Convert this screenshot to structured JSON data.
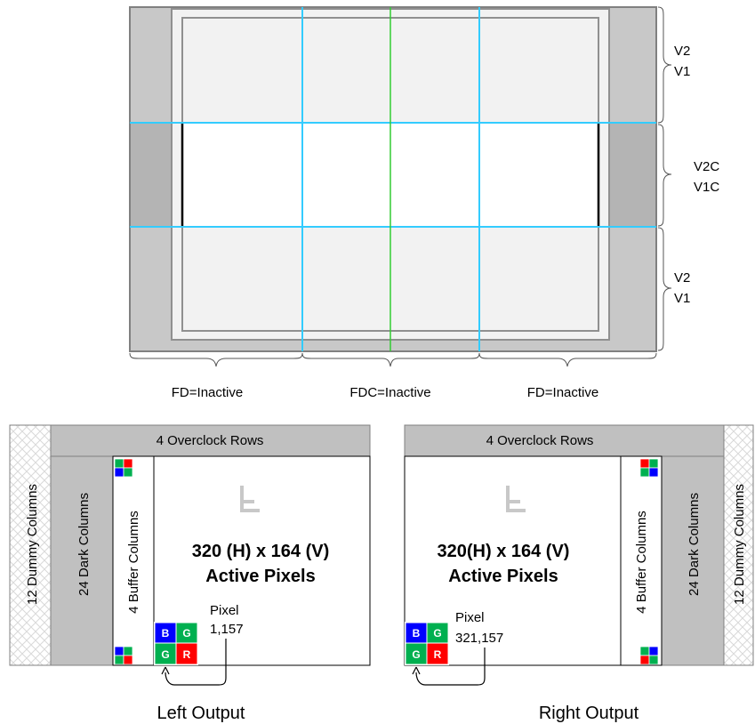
{
  "top_diagram": {
    "right_labels": [
      {
        "line1": "V2",
        "line2": "V1"
      },
      {
        "line1": "V2C",
        "line2": "V1C"
      },
      {
        "line1": "V2",
        "line2": "V1"
      }
    ],
    "bottom_labels": [
      "FD=Inactive",
      "FDC=Inactive",
      "FD=Inactive"
    ]
  },
  "left_panel": {
    "dummy_label": "12 Dummy Columns",
    "dark_label": "24 Dark Columns",
    "overclock_label": "4 Overclock Rows",
    "buffer_label": "4 Buffer Columns",
    "active_line1": "320 (H) x 164 (V)",
    "active_line2": "Active Pixels",
    "pixel_label": "Pixel",
    "pixel_coord": "1,157",
    "output_label": "Left Output"
  },
  "right_panel": {
    "dummy_label": "12 Dummy Columns",
    "dark_label": "24 Dark Columns",
    "overclock_label": "4 Overclock Rows",
    "buffer_label": "4 Buffer Columns",
    "active_line1": "320(H) x 164 (V)",
    "active_line2": "Active Pixels",
    "pixel_label": "Pixel",
    "pixel_coord": "321,157",
    "output_label": "Right Output"
  },
  "pixel_letters": {
    "b": "B",
    "g": "G",
    "r": "R"
  },
  "colors": {
    "blue": "#0000ff",
    "green": "#00b050",
    "red": "#ff0000",
    "cyan_line": "#33ccff",
    "green_line": "#33cc33",
    "gray_dark": "#c0c0c0",
    "gray_light": "#d9d9d9"
  }
}
